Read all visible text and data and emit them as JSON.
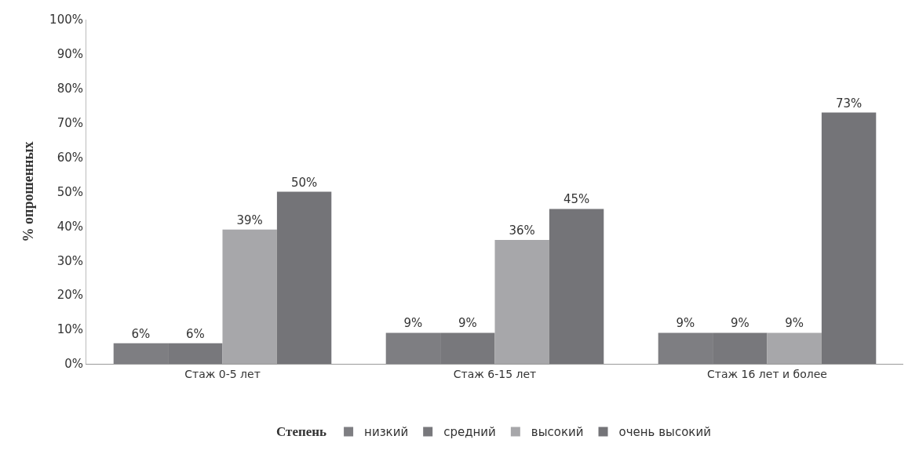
{
  "chart_data": {
    "type": "bar",
    "ylabel": "% опрошенных",
    "legend_title": "Степень",
    "legend": "bottom",
    "grid": false,
    "categories": [
      "Стаж 0-5 лет",
      "Стаж 6-15 лет",
      "Стаж 16 лет и более"
    ],
    "series": [
      {
        "name": "низкий",
        "color": "#7e7e82",
        "values": [
          6,
          9,
          9
        ],
        "value_labels": [
          "6%",
          "9%",
          "9%"
        ]
      },
      {
        "name": "средний",
        "color": "#78787c",
        "values": [
          6,
          9,
          9
        ],
        "value_labels": [
          "6%",
          "9%",
          "9%"
        ]
      },
      {
        "name": "высокий",
        "color": "#a7a7aa",
        "values": [
          39,
          36,
          9
        ],
        "value_labels": [
          "39%",
          "36%",
          "9%"
        ]
      },
      {
        "name": "очень высокий",
        "color": "#747478",
        "values": [
          50,
          45,
          73
        ],
        "value_labels": [
          "50%",
          "45%",
          "73%"
        ]
      }
    ],
    "ylim": [
      0,
      100
    ],
    "yticks": [
      {
        "value": 0,
        "label": "0%"
      },
      {
        "value": 10,
        "label": "10%"
      },
      {
        "value": 20,
        "label": "20%"
      },
      {
        "value": 30,
        "label": "30%"
      },
      {
        "value": 40,
        "label": "40%"
      },
      {
        "value": 50,
        "label": "50%"
      },
      {
        "value": 60,
        "label": "60%"
      },
      {
        "value": 70,
        "label": "70%"
      },
      {
        "value": 80,
        "label": "80%"
      },
      {
        "value": 90,
        "label": "90%"
      },
      {
        "value": 100,
        "label": "100%"
      }
    ]
  }
}
